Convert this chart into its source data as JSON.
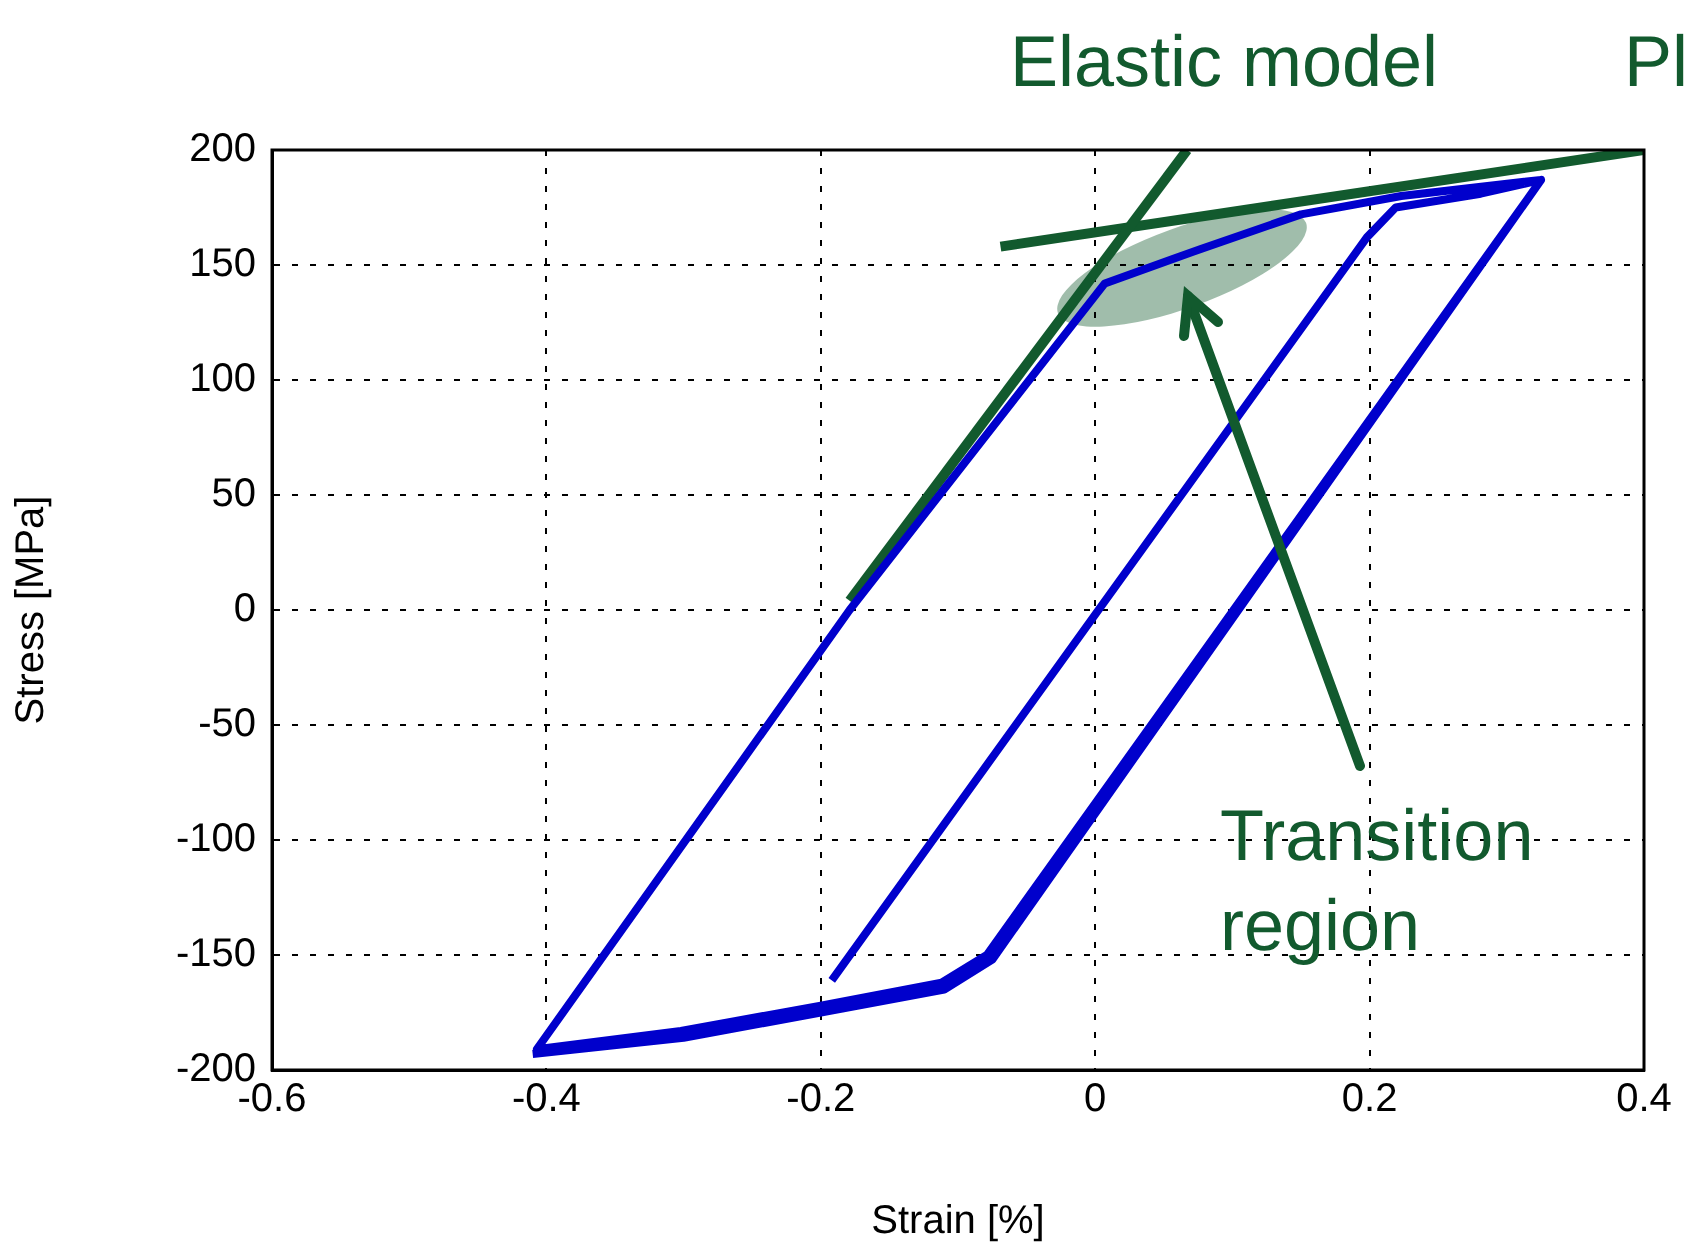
{
  "chart_data": {
    "type": "line",
    "xlabel": "Strain [%]",
    "ylabel": "Stress [MPa]",
    "xlim": [
      -0.6,
      0.4
    ],
    "xticks": [
      -0.6,
      -0.4,
      -0.2,
      0,
      0.2,
      0.4
    ],
    "ylim": [
      -200,
      200
    ],
    "yticks": [
      -200,
      -150,
      -100,
      -50,
      0,
      50,
      100,
      150,
      200
    ],
    "grid": true,
    "legend": false,
    "marker": "none",
    "line_style": "solid",
    "annotations": [
      "Elastic model",
      "Pl",
      "Transition region"
    ],
    "series": [
      {
        "color": "#0000cc",
        "x": [
          -0.192,
          0.198,
          0.219,
          0.281,
          0.325,
          -0.079,
          -0.112,
          -0.2,
          -0.302,
          -0.407,
          -0.179,
          0.007,
          0.077,
          0.15,
          0.223,
          0.325,
          -0.075,
          -0.11,
          -0.2,
          -0.3,
          -0.41
        ],
        "values": [
          -161,
          162,
          175,
          181,
          187,
          -150,
          -162,
          -172,
          -183,
          -191,
          0,
          142,
          157,
          172,
          180,
          187,
          -152,
          -165,
          -175,
          -186,
          -193
        ]
      },
      {
        "color": "#125a2e",
        "x": [
          -0.179,
          0.067
        ],
        "values": [
          4,
          200
        ]
      },
      {
        "color": "#125a2e",
        "x": [
          -0.069,
          0.4
        ],
        "values": [
          158,
          200
        ]
      }
    ]
  }
}
